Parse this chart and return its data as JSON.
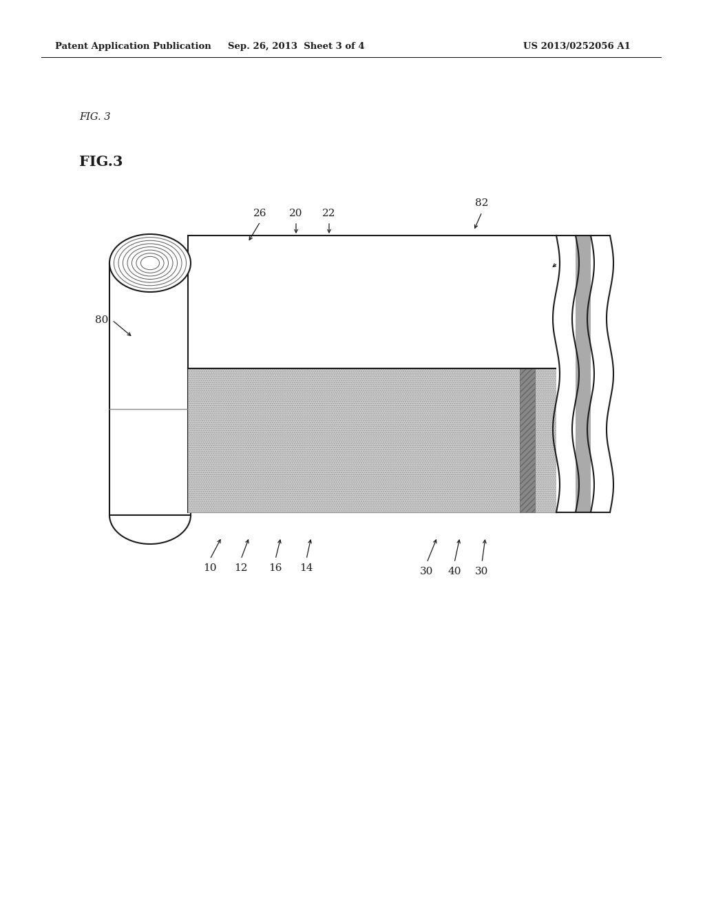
{
  "header_left": "Patent Application Publication",
  "header_mid": "Sep. 26, 2013  Sheet 3 of 4",
  "header_right": "US 2013/0252056 A1",
  "fig_label_top": "FIG. 3",
  "fig_label": "FIG.3",
  "bg_color": "#ffffff",
  "line_color": "#1a1a1a",
  "gray_light": "#d0d0d0",
  "gray_dot": "#b8b8b8",
  "gray_dark_strip": "#888888",
  "gray_wavy_fill": "#c8c8c8"
}
